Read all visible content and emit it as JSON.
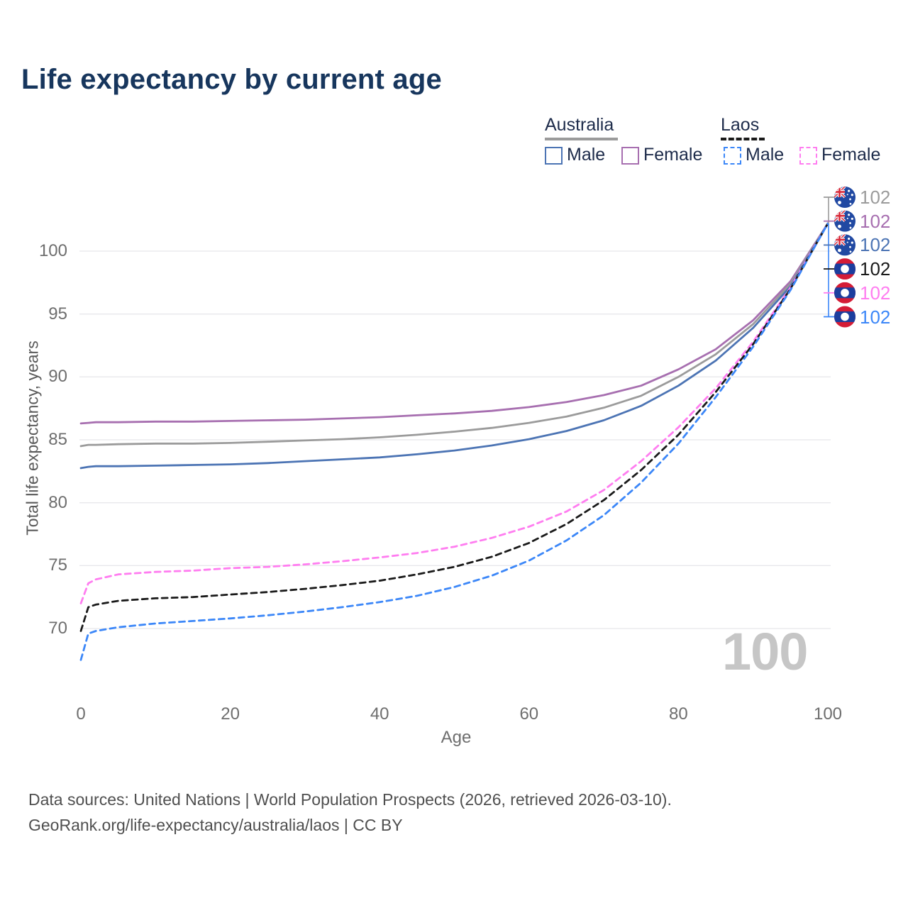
{
  "title": "Life expectancy by current age",
  "colors": {
    "title": "#17365d",
    "grid": "#e8e8eb",
    "axis_text": "#6e6e6e",
    "australia_male": "#4c74b4",
    "australia_female": "#a76fb0",
    "australia_both": "#9b9b9b",
    "laos_male": "#3c87f8",
    "laos_female": "#ff7df0",
    "laos_both": "#1a1a1a"
  },
  "legend": {
    "groups": [
      {
        "label": "Australia",
        "line_style": "solid",
        "underline_color": "#9b9b9b",
        "items": [
          {
            "label": "Male",
            "color": "#4c74b4"
          },
          {
            "label": "Female",
            "color": "#a76fb0"
          }
        ]
      },
      {
        "label": "Laos",
        "line_style": "dashed",
        "underline_color": "#1a1a1a",
        "items": [
          {
            "label": "Male",
            "color": "#3c87f8"
          },
          {
            "label": "Female",
            "color": "#ff7df0"
          }
        ]
      }
    ]
  },
  "chart_data": {
    "type": "line",
    "title": "Life expectancy by current age",
    "xlabel": "Age",
    "ylabel": "Total life expectancy, years",
    "x_ticks": [
      0,
      20,
      40,
      60,
      80,
      100
    ],
    "y_ticks": [
      70,
      75,
      80,
      85,
      90,
      95,
      100
    ],
    "xlim": [
      0,
      100
    ],
    "ylim": [
      67,
      103
    ],
    "grid": "horizontal",
    "legend_position": "top-right",
    "ages": [
      0,
      1,
      2,
      5,
      10,
      15,
      20,
      25,
      30,
      35,
      40,
      45,
      50,
      55,
      60,
      65,
      70,
      75,
      80,
      85,
      90,
      95,
      100
    ],
    "series": [
      {
        "name": "Australia Female",
        "color": "#a76fb0",
        "dash": null,
        "values": [
          86.3,
          86.35,
          86.4,
          86.4,
          86.45,
          86.45,
          86.5,
          86.55,
          86.6,
          86.7,
          86.8,
          86.95,
          87.1,
          87.3,
          87.6,
          88.0,
          88.55,
          89.3,
          90.6,
          92.2,
          94.5,
          97.6,
          102.2
        ]
      },
      {
        "name": "Australia Both sexes",
        "color": "#9b9b9b",
        "dash": null,
        "values": [
          84.5,
          84.6,
          84.6,
          84.65,
          84.7,
          84.7,
          84.75,
          84.85,
          84.95,
          85.05,
          85.2,
          85.4,
          85.65,
          85.95,
          86.35,
          86.85,
          87.55,
          88.5,
          90.0,
          91.8,
          94.2,
          97.4,
          102.2
        ]
      },
      {
        "name": "Australia Male",
        "color": "#4c74b4",
        "dash": null,
        "values": [
          82.75,
          82.85,
          82.9,
          82.9,
          82.95,
          83.0,
          83.05,
          83.15,
          83.3,
          83.45,
          83.6,
          83.85,
          84.15,
          84.55,
          85.05,
          85.7,
          86.55,
          87.7,
          89.3,
          91.3,
          93.9,
          97.2,
          102.2
        ]
      },
      {
        "name": "Laos Female",
        "color": "#ff7df0",
        "dash": "8 6",
        "values": [
          72.0,
          73.6,
          73.9,
          74.3,
          74.5,
          74.6,
          74.8,
          74.9,
          75.1,
          75.35,
          75.65,
          76.0,
          76.5,
          77.2,
          78.1,
          79.3,
          81.0,
          83.3,
          86.0,
          89.1,
          92.8,
          97.1,
          102.2
        ]
      },
      {
        "name": "Laos Both sexes",
        "color": "#1a1a1a",
        "dash": "8 6",
        "values": [
          69.8,
          71.7,
          71.9,
          72.2,
          72.4,
          72.5,
          72.7,
          72.9,
          73.15,
          73.45,
          73.8,
          74.3,
          74.9,
          75.7,
          76.8,
          78.3,
          80.2,
          82.6,
          85.4,
          88.8,
          92.6,
          97.0,
          102.2
        ]
      },
      {
        "name": "Laos Male",
        "color": "#3c87f8",
        "dash": "8 6",
        "values": [
          67.5,
          69.6,
          69.8,
          70.1,
          70.4,
          70.6,
          70.8,
          71.05,
          71.35,
          71.7,
          72.1,
          72.6,
          73.3,
          74.2,
          75.4,
          77.0,
          79.0,
          81.6,
          84.7,
          88.4,
          92.4,
          96.9,
          102.2
        ]
      }
    ]
  },
  "end_labels": [
    {
      "flag": "australia",
      "value": "102",
      "color": "#9b9b9b"
    },
    {
      "flag": "australia",
      "value": "102",
      "color": "#a76fb0"
    },
    {
      "flag": "australia",
      "value": "102",
      "color": "#4c74b4"
    },
    {
      "flag": "laos",
      "value": "102",
      "color": "#1a1a1a"
    },
    {
      "flag": "laos",
      "value": "102",
      "color": "#ff7df0"
    },
    {
      "flag": "laos",
      "value": "102",
      "color": "#3c87f8"
    }
  ],
  "watermark": "100",
  "footer": {
    "line1": "Data sources: United Nations | World Population Prospects (2026, retrieved 2026-03-10).",
    "line2": "GeoRank.org/life-expectancy/australia/laos | CC BY"
  }
}
